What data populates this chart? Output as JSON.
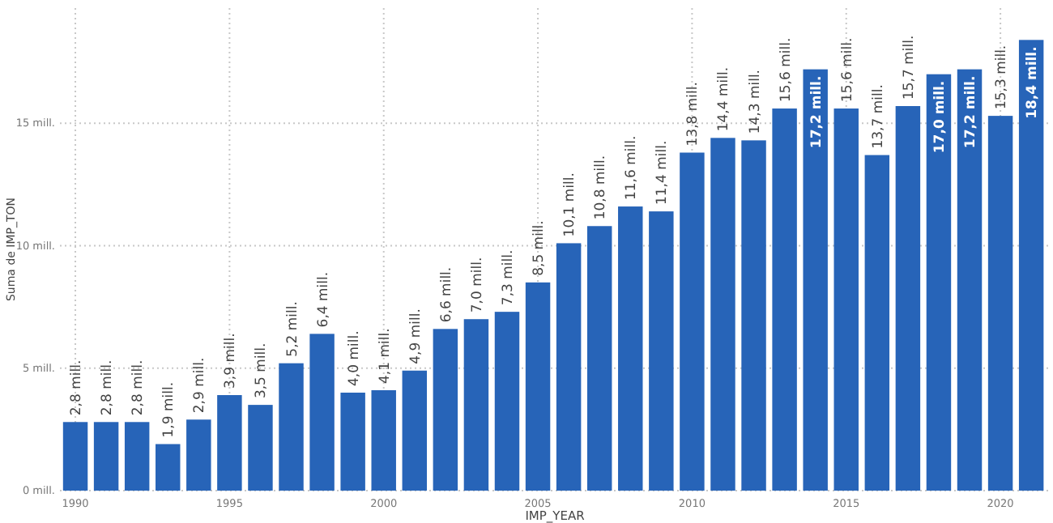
{
  "chart_data": {
    "type": "bar",
    "xlabel": "IMP_YEAR",
    "ylabel": "Suma de IMP_TON",
    "x": [
      1990,
      1991,
      1992,
      1993,
      1994,
      1995,
      1996,
      1997,
      1998,
      1999,
      2000,
      2001,
      2002,
      2003,
      2004,
      2005,
      2006,
      2007,
      2008,
      2009,
      2010,
      2011,
      2012,
      2013,
      2014,
      2015,
      2016,
      2017,
      2018,
      2019,
      2020,
      2021
    ],
    "values": [
      2.8,
      2.8,
      2.8,
      1.9,
      2.9,
      3.9,
      3.5,
      5.2,
      6.4,
      4.0,
      4.1,
      4.9,
      6.6,
      7.0,
      7.3,
      8.5,
      10.1,
      10.8,
      11.6,
      11.4,
      13.8,
      14.4,
      14.3,
      15.6,
      17.2,
      15.6,
      13.7,
      15.7,
      17.0,
      17.2,
      15.3,
      18.4
    ],
    "value_labels": [
      "2,8 mill.",
      "2,8 mill.",
      "2,8 mill.",
      "1,9 mill.",
      "2,9 mill.",
      "3,9 mill.",
      "3,5 mill.",
      "5,2 mill.",
      "6,4 mill.",
      "4,0 mill.",
      "4,1 mill.",
      "4,9 mill.",
      "6,6 mill.",
      "7,0 mill.",
      "7,3 mill.",
      "8,5 mill.",
      "10,1 mill.",
      "10,8 mill.",
      "11,6 mill.",
      "11,4 mill.",
      "13,8 mill.",
      "14,4 mill.",
      "14,3 mill.",
      "15,6 mill.",
      "17,2 mill.",
      "15,6 mill.",
      "13,7 mill.",
      "15,7 mill.",
      "17,0 mill.",
      "17,2 mill.",
      "15,3 mill.",
      "18,4 mill."
    ],
    "color": "#2764b8",
    "xlim": [
      1989.5,
      2021.6
    ],
    "xticks": [
      1990,
      1995,
      2000,
      2005,
      2010,
      2015,
      2020
    ],
    "ylim": [
      0,
      19.7
    ],
    "yticks": [
      {
        "value": 0,
        "label": "0 mill."
      },
      {
        "value": 5,
        "label": "5 mill."
      },
      {
        "value": 10,
        "label": "10 mill."
      },
      {
        "value": 15,
        "label": "15 mill."
      }
    ],
    "grid": true
  }
}
